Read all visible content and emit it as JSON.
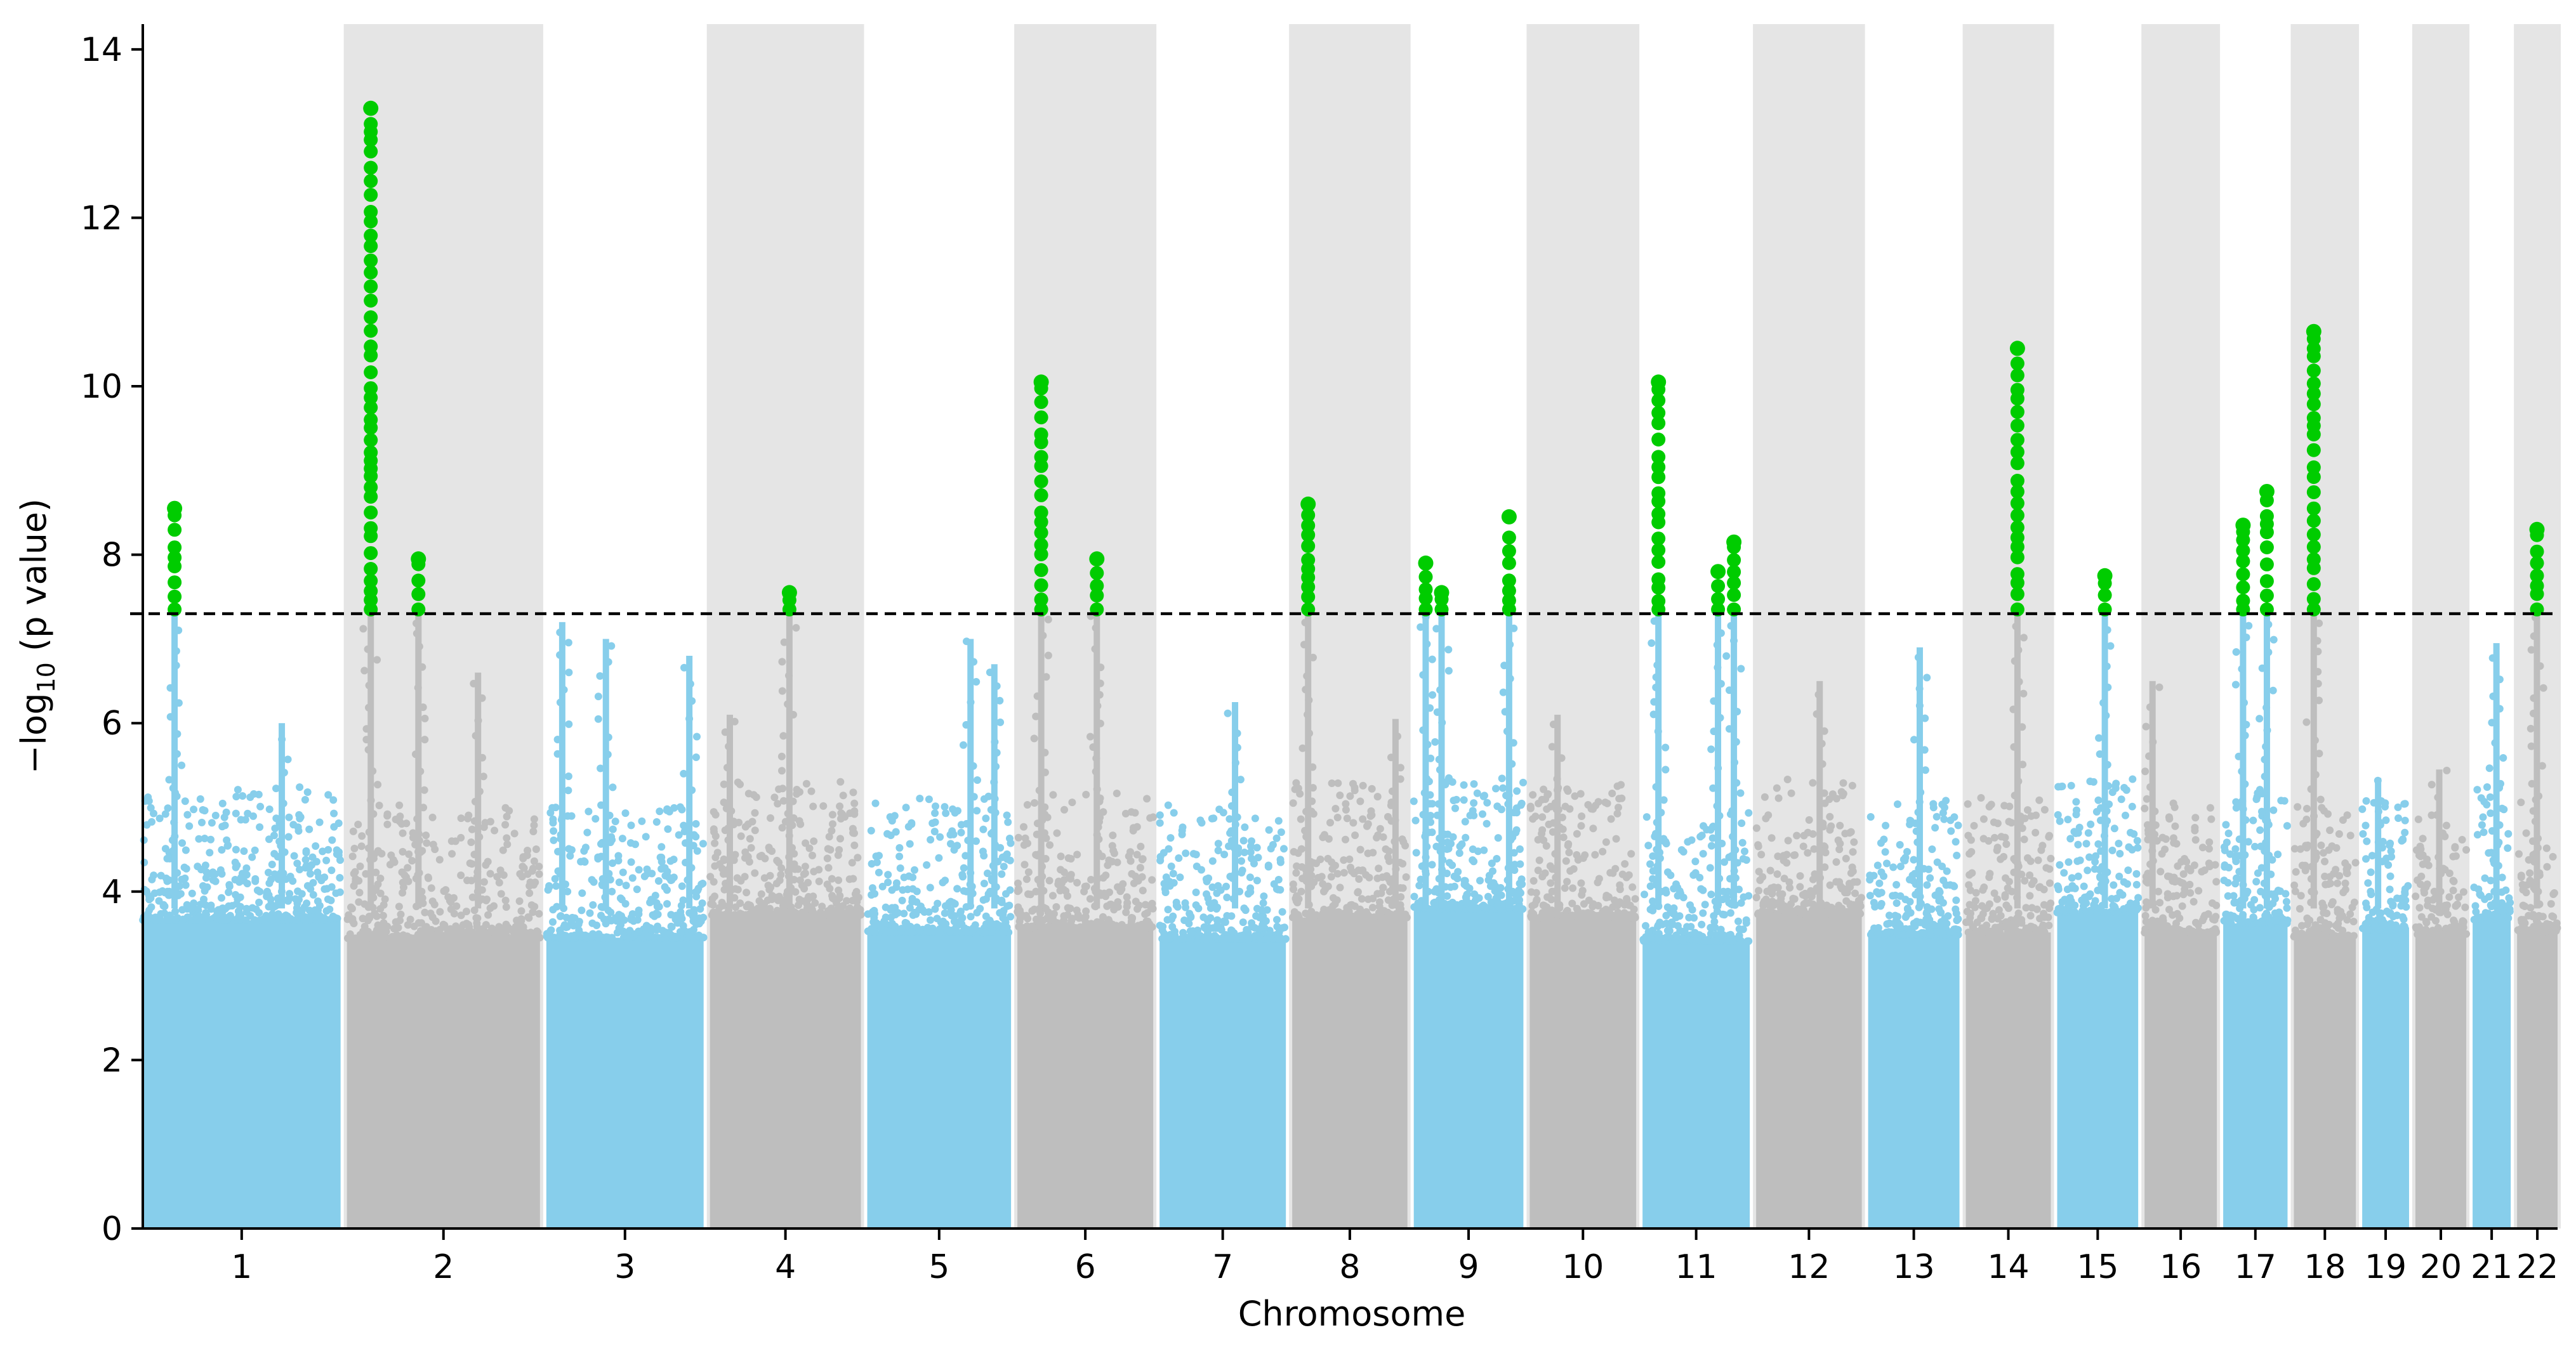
{
  "chart_data": {
    "type": "scatter",
    "subtype": "manhattan",
    "title": "",
    "xlabel": "Chromosome",
    "ylabel_prefix": "−log",
    "ylabel_subscript": "10",
    "ylabel_suffix": " (p value)",
    "ylim": [
      0,
      14.3
    ],
    "yticks": [
      0,
      2,
      4,
      6,
      8,
      10,
      12,
      14
    ],
    "significance_threshold": 7.3,
    "colors": {
      "odd_chrom_points": "#87ceeb",
      "even_chrom_points": "#bebebe",
      "significant_points": "#00cc00",
      "shade_band": "#e5e5e5",
      "threshold_line": "#000000"
    },
    "chromosomes": [
      {
        "label": "1",
        "start": 0,
        "end": 249
      },
      {
        "label": "2",
        "start": 249,
        "end": 492
      },
      {
        "label": "3",
        "start": 492,
        "end": 690
      },
      {
        "label": "4",
        "start": 690,
        "end": 880
      },
      {
        "label": "5",
        "start": 880,
        "end": 1061
      },
      {
        "label": "6",
        "start": 1061,
        "end": 1232
      },
      {
        "label": "7",
        "start": 1232,
        "end": 1391
      },
      {
        "label": "8",
        "start": 1391,
        "end": 1536
      },
      {
        "label": "9",
        "start": 1536,
        "end": 1674
      },
      {
        "label": "10",
        "start": 1674,
        "end": 1808
      },
      {
        "label": "11",
        "start": 1808,
        "end": 1943
      },
      {
        "label": "12",
        "start": 1943,
        "end": 2076
      },
      {
        "label": "13",
        "start": 2076,
        "end": 2191
      },
      {
        "label": "14",
        "start": 2191,
        "end": 2298
      },
      {
        "label": "15",
        "start": 2298,
        "end": 2400
      },
      {
        "label": "16",
        "start": 2400,
        "end": 2491
      },
      {
        "label": "17",
        "start": 2491,
        "end": 2572
      },
      {
        "label": "18",
        "start": 2572,
        "end": 2650
      },
      {
        "label": "19",
        "start": 2650,
        "end": 2709
      },
      {
        "label": "20",
        "start": 2709,
        "end": 2773
      },
      {
        "label": "21",
        "start": 2773,
        "end": 2821
      },
      {
        "label": "22",
        "start": 2821,
        "end": 2872
      }
    ],
    "peaks": [
      {
        "chrom": "1",
        "pos": 40,
        "top": 8.55
      },
      {
        "chrom": "1",
        "pos": 175,
        "top": 6.0
      },
      {
        "chrom": "2",
        "pos": 30,
        "top": 13.3
      },
      {
        "chrom": "2",
        "pos": 90,
        "top": 7.95
      },
      {
        "chrom": "2",
        "pos": 165,
        "top": 6.6
      },
      {
        "chrom": "3",
        "pos": 20,
        "top": 7.2
      },
      {
        "chrom": "3",
        "pos": 75,
        "top": 7.0
      },
      {
        "chrom": "3",
        "pos": 180,
        "top": 6.8
      },
      {
        "chrom": "4",
        "pos": 100,
        "top": 7.55
      },
      {
        "chrom": "4",
        "pos": 25,
        "top": 6.1
      },
      {
        "chrom": "5",
        "pos": 130,
        "top": 7.0
      },
      {
        "chrom": "5",
        "pos": 160,
        "top": 6.7
      },
      {
        "chrom": "6",
        "pos": 30,
        "top": 10.05
      },
      {
        "chrom": "6",
        "pos": 100,
        "top": 7.95
      },
      {
        "chrom": "7",
        "pos": 95,
        "top": 6.25
      },
      {
        "chrom": "8",
        "pos": 20,
        "top": 8.6
      },
      {
        "chrom": "8",
        "pos": 130,
        "top": 6.05
      },
      {
        "chrom": "9",
        "pos": 15,
        "top": 7.9
      },
      {
        "chrom": "9",
        "pos": 35,
        "top": 7.55
      },
      {
        "chrom": "9",
        "pos": 120,
        "top": 8.45
      },
      {
        "chrom": "10",
        "pos": 35,
        "top": 6.1
      },
      {
        "chrom": "11",
        "pos": 20,
        "top": 10.05
      },
      {
        "chrom": "11",
        "pos": 95,
        "top": 7.8
      },
      {
        "chrom": "11",
        "pos": 115,
        "top": 8.15
      },
      {
        "chrom": "12",
        "pos": 80,
        "top": 6.5
      },
      {
        "chrom": "13",
        "pos": 65,
        "top": 6.9
      },
      {
        "chrom": "14",
        "pos": 65,
        "top": 10.45
      },
      {
        "chrom": "15",
        "pos": 60,
        "top": 7.75
      },
      {
        "chrom": "16",
        "pos": 10,
        "top": 6.5
      },
      {
        "chrom": "17",
        "pos": 25,
        "top": 8.35
      },
      {
        "chrom": "17",
        "pos": 55,
        "top": 8.75
      },
      {
        "chrom": "18",
        "pos": 25,
        "top": 10.65
      },
      {
        "chrom": "19",
        "pos": 20,
        "top": 5.35
      },
      {
        "chrom": "20",
        "pos": 30,
        "top": 5.45
      },
      {
        "chrom": "21",
        "pos": 30,
        "top": 6.95
      },
      {
        "chrom": "22",
        "pos": 25,
        "top": 8.3
      }
    ]
  }
}
